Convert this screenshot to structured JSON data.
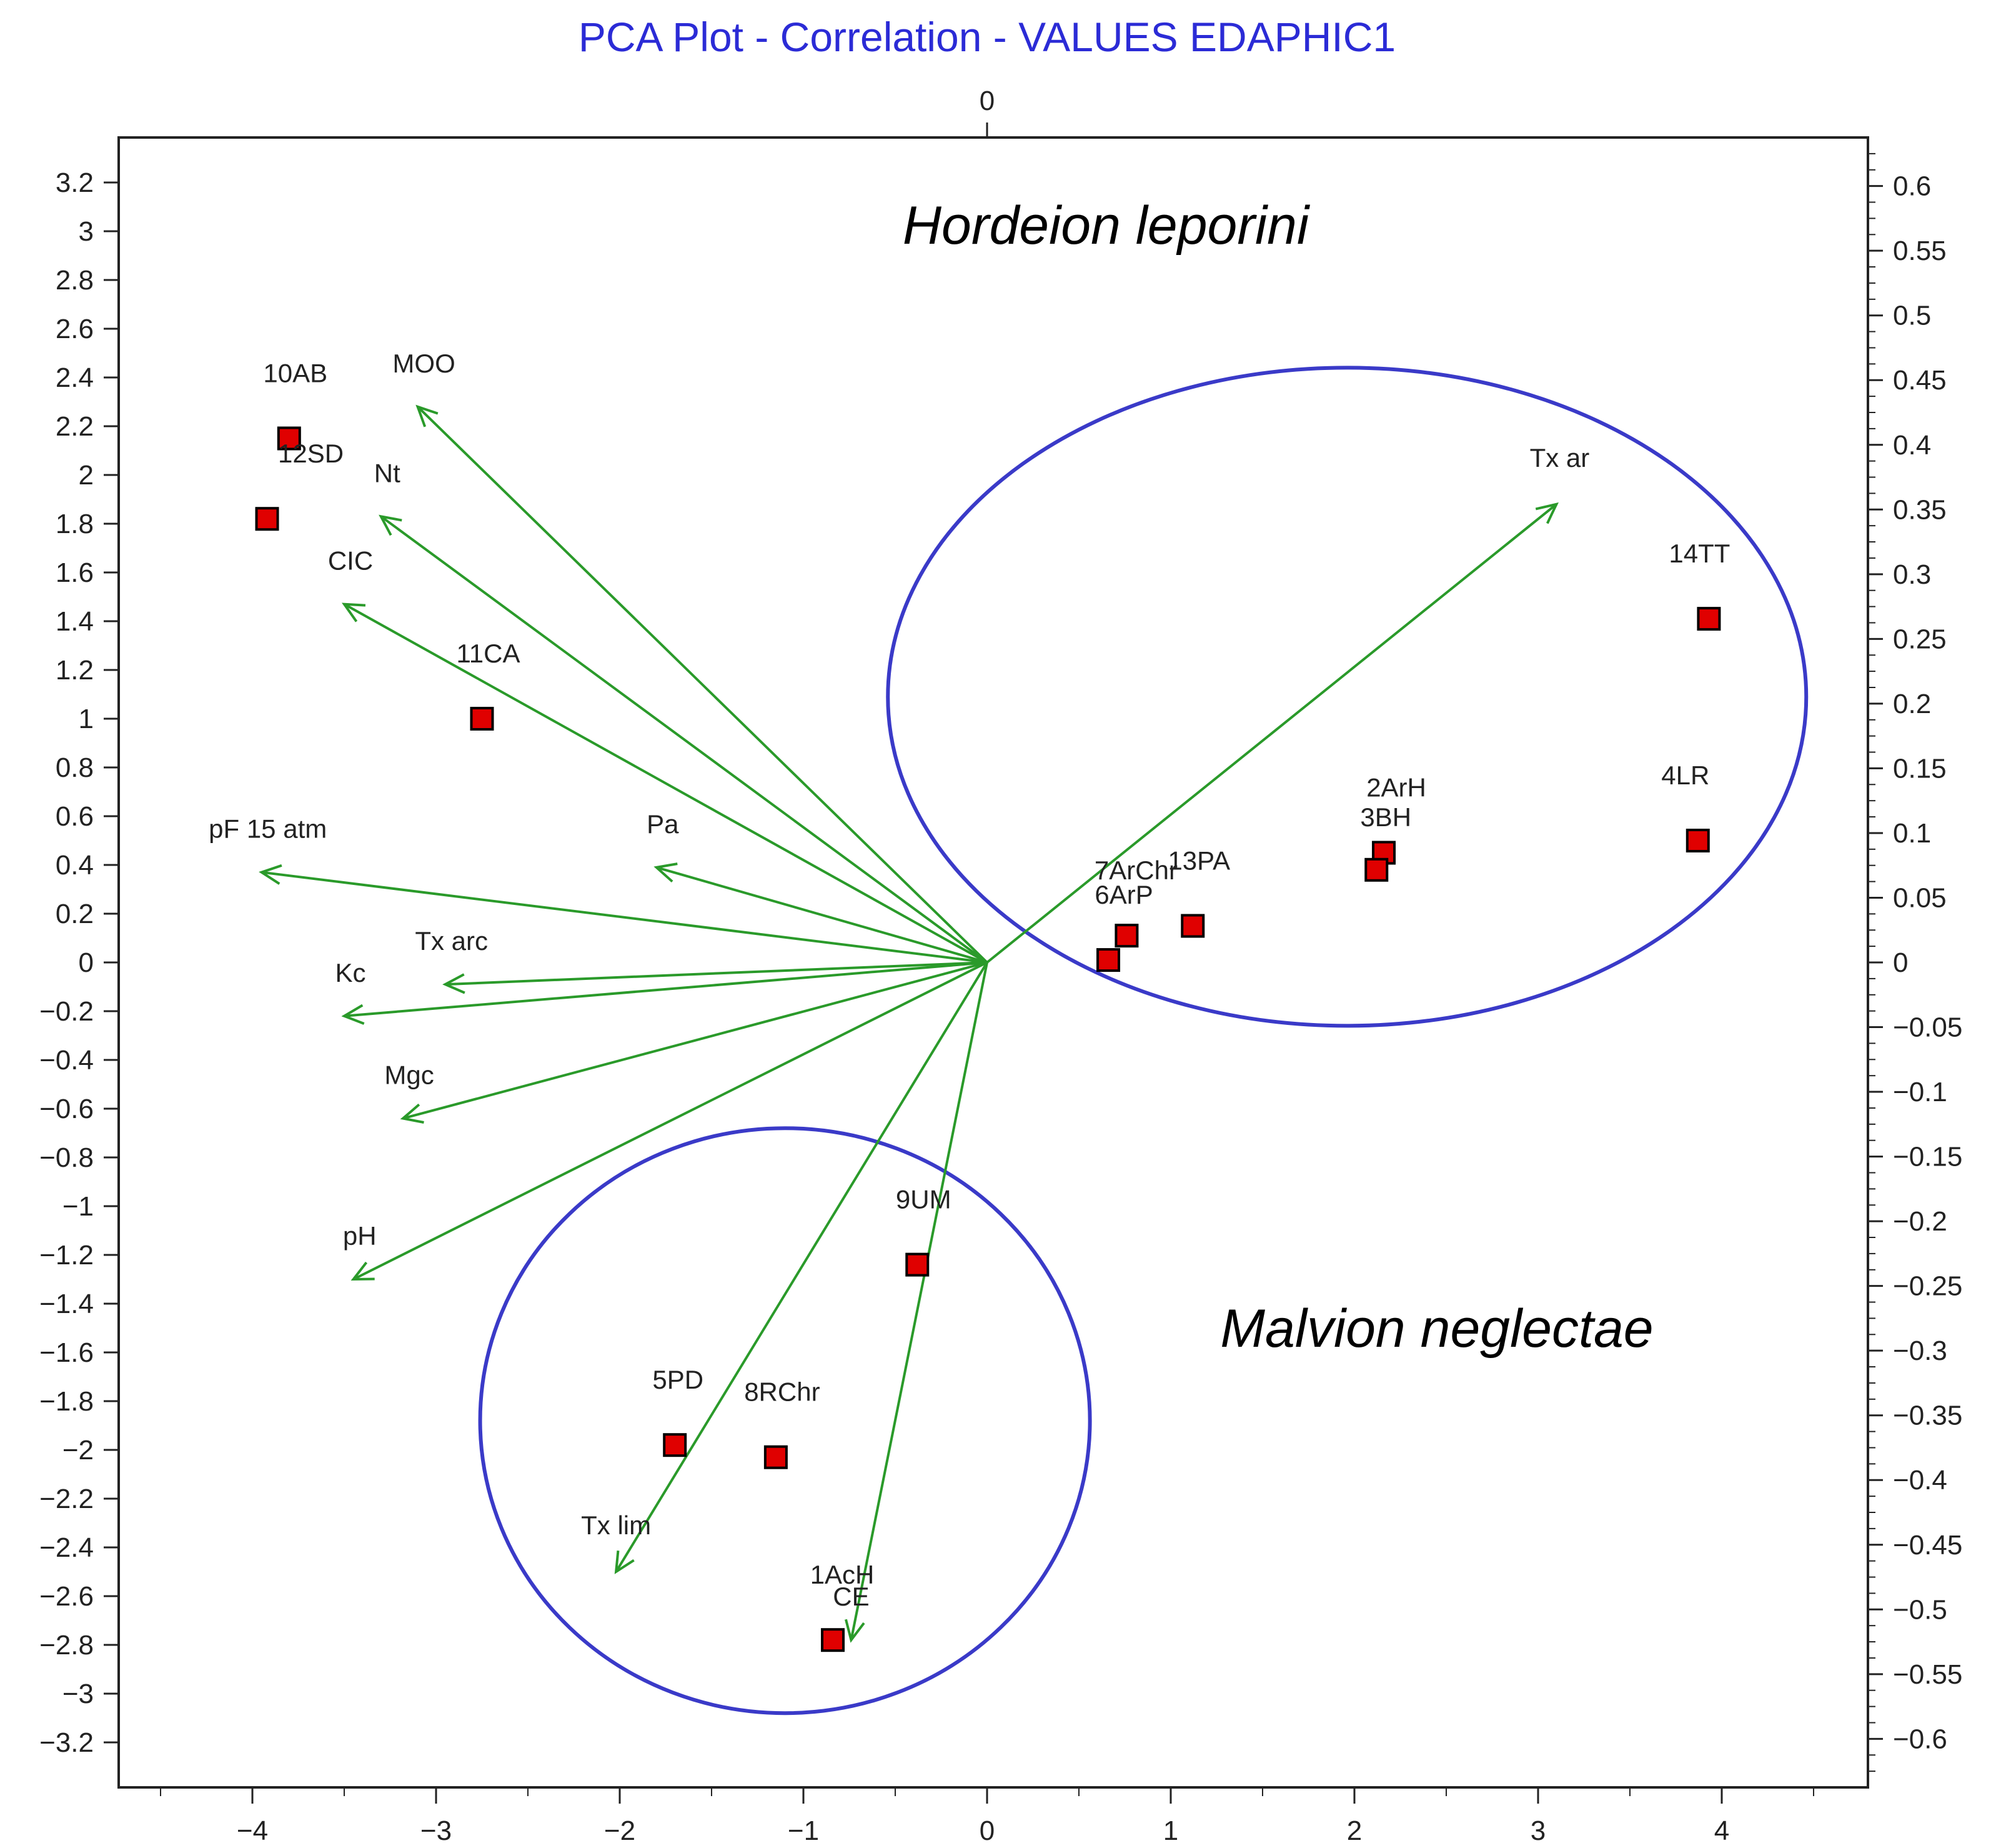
{
  "chart_data": {
    "type": "scatter",
    "title": "PCA Plot - Correlation - VALUES EDAPHIC1",
    "x_axis": {
      "ticks": [
        -4,
        -3,
        -2,
        -1,
        0,
        1,
        2,
        3,
        4
      ],
      "tick_labels": [
        "−4",
        "−3",
        "−2",
        "−1",
        "0",
        "1",
        "2",
        "3",
        "4"
      ],
      "range": [
        -4.8,
        4.8
      ]
    },
    "top_axis": {
      "tick_labels": [
        "0"
      ]
    },
    "y_left_axis": {
      "range": [
        -3.4,
        3.4
      ],
      "ticks": [
        3.2,
        3,
        2.8,
        2.6,
        2.4,
        2.2,
        2,
        1.8,
        1.6,
        1.4,
        1.2,
        1,
        0.8,
        0.6,
        0.4,
        0.2,
        0,
        -0.2,
        -0.4,
        -0.6,
        -0.8,
        -1,
        -1.2,
        -1.4,
        -1.6,
        -1.8,
        -2,
        -2.2,
        -2.4,
        -2.6,
        -2.8,
        -3,
        -3.2
      ],
      "tick_labels": [
        "3.2",
        "3",
        "2.8",
        "2.6",
        "2.4",
        "2.2",
        "2",
        "1.8",
        "1.6",
        "1.4",
        "1.2",
        "1",
        "0.8",
        "0.6",
        "0.4",
        "0.2",
        "0",
        "−0.2",
        "−0.4",
        "−0.6",
        "−0.8",
        "−1",
        "−1.2",
        "−1.4",
        "−1.6",
        "−1.8",
        "−2",
        "−2.2",
        "−2.4",
        "−2.6",
        "−2.8",
        "−3",
        "−3.2"
      ]
    },
    "y_right_axis": {
      "range": [
        -0.6375,
        0.6375
      ],
      "ticks": [
        0.6,
        0.55,
        0.5,
        0.45,
        0.4,
        0.35,
        0.3,
        0.25,
        0.2,
        0.15,
        0.1,
        0.05,
        0,
        -0.05,
        -0.1,
        -0.15,
        -0.2,
        -0.25,
        -0.3,
        -0.35,
        -0.4,
        -0.45,
        -0.5,
        -0.55,
        -0.6
      ],
      "tick_labels": [
        "0.6",
        "0.55",
        "0.5",
        "0.45",
        "0.4",
        "0.35",
        "0.3",
        "0.25",
        "0.2",
        "0.15",
        "0.1",
        "0.05",
        "0",
        "−0.05",
        "−0.1",
        "−0.15",
        "−0.2",
        "−0.25",
        "−0.3",
        "−0.35",
        "−0.4",
        "−0.45",
        "−0.5",
        "−0.55",
        "−0.6"
      ]
    },
    "points": [
      {
        "label": "10AB",
        "x": -3.8,
        "y": 2.15
      },
      {
        "label": "12SD",
        "x": -3.92,
        "y": 1.82
      },
      {
        "label": "11CA",
        "x": -2.75,
        "y": 1.0
      },
      {
        "label": "14TT",
        "x": 3.93,
        "y": 1.41
      },
      {
        "label": "4LR",
        "x": 3.87,
        "y": 0.5
      },
      {
        "label": "2ArH",
        "x": 2.16,
        "y": 0.45
      },
      {
        "label": "3BH",
        "x": 2.12,
        "y": 0.38
      },
      {
        "label": "13PA",
        "x": 1.12,
        "y": 0.15
      },
      {
        "label": "7ArChr",
        "x": 0.76,
        "y": 0.11
      },
      {
        "label": "6ArP",
        "x": 0.66,
        "y": 0.01
      },
      {
        "label": "9UM",
        "x": -0.38,
        "y": -1.24
      },
      {
        "label": "5PD",
        "x": -1.7,
        "y": -1.98
      },
      {
        "label": "8RChr",
        "x": -1.15,
        "y": -2.03
      },
      {
        "label": "1AcH",
        "x": -0.84,
        "y": -2.78
      }
    ],
    "vectors": [
      {
        "label": "MOO",
        "x": -3.1,
        "y": 2.28
      },
      {
        "label": "Nt",
        "x": -3.3,
        "y": 1.83
      },
      {
        "label": "CIC",
        "x": -3.5,
        "y": 1.47
      },
      {
        "label": "Pa",
        "x": -1.8,
        "y": 0.39
      },
      {
        "label": "pF 15 atm",
        "x": -3.95,
        "y": 0.37
      },
      {
        "label": "Tx arc",
        "x": -2.95,
        "y": -0.09
      },
      {
        "label": "Kc",
        "x": -3.5,
        "y": -0.22
      },
      {
        "label": "Mgc",
        "x": -3.18,
        "y": -0.64
      },
      {
        "label": "pH",
        "x": -3.45,
        "y": -1.3
      },
      {
        "label": "Tx ar",
        "x": 3.1,
        "y": 1.88
      },
      {
        "label": "Tx lim",
        "x": -2.02,
        "y": -2.5
      },
      {
        "label": "CE",
        "x": -0.74,
        "y": -2.78
      }
    ],
    "groups": [
      {
        "label": "Hordeion leporini",
        "cx": 1.96,
        "cy": 1.09,
        "rx": 2.5,
        "ry": 1.35
      },
      {
        "label": "Malvion neglectae",
        "cx": -1.1,
        "cy": -1.88,
        "rx": 1.66,
        "ry": 1.2
      }
    ],
    "colors": {
      "title": "#2b2bd6",
      "marker_fill": "#e00000",
      "marker_edge": "#000000",
      "vector": "#2a9a2a",
      "ellipse": "#3a3ac8",
      "axis": "#222222"
    }
  }
}
